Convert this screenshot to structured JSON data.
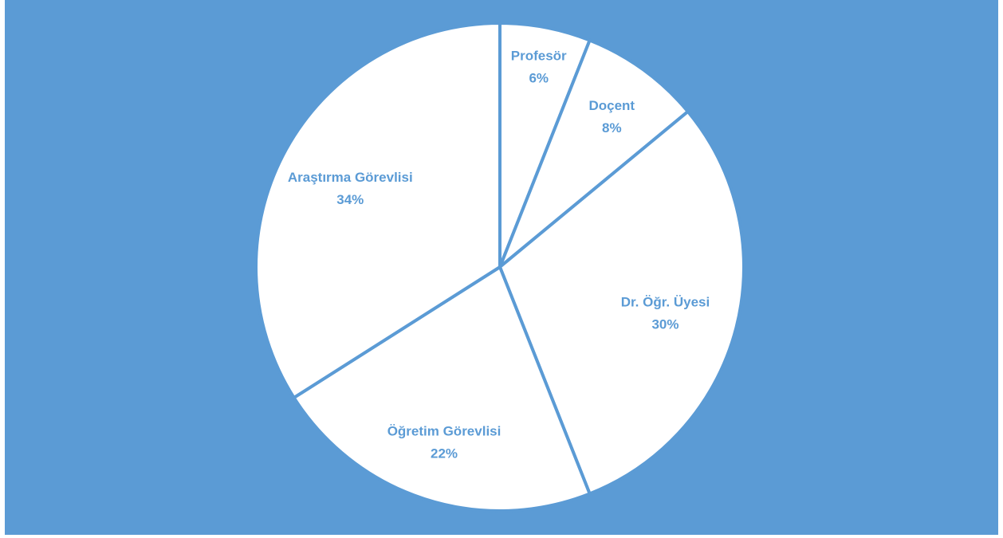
{
  "colors": {
    "background": "#5b9bd5",
    "slice_fill": "#ffffff",
    "slice_border": "#5b9bd5",
    "label_text": "#5b9bd5"
  },
  "chart_data": {
    "type": "pie",
    "title": "",
    "legend": "none",
    "start_angle_deg": 0,
    "direction": "clockwise",
    "categories": [
      "Profesör",
      "Doçent",
      "Dr. Öğr. Üyesi",
      "Öğretim Görevlisi",
      "Araştırma Görevlisi"
    ],
    "values": [
      6,
      8,
      30,
      22,
      34
    ],
    "value_labels": [
      "6%",
      "8%",
      "30%",
      "22%",
      "34%"
    ]
  }
}
